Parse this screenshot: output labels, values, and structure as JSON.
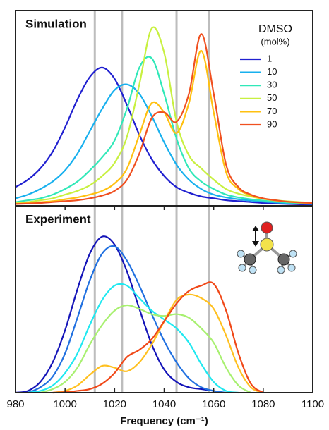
{
  "chart_data": [
    {
      "type": "line",
      "title": "Simulation",
      "legend_title": "DMSO",
      "legend_subtitle": "(mol%)",
      "legend": "upper right",
      "x": [
        980,
        985,
        990,
        995,
        1000,
        1005,
        1010,
        1015,
        1020,
        1025,
        1030,
        1035,
        1040,
        1045,
        1050,
        1055,
        1060,
        1065,
        1070,
        1075,
        1080,
        1085,
        1090,
        1095,
        1100
      ],
      "xlim": [
        980,
        1100
      ],
      "ylim": [
        0,
        1
      ],
      "reference_lines": [
        1012,
        1023,
        1045,
        1058
      ],
      "series": [
        {
          "name": "1",
          "color": "#2020d0",
          "values": [
            0.1,
            0.14,
            0.2,
            0.29,
            0.42,
            0.57,
            0.69,
            0.74,
            0.68,
            0.54,
            0.38,
            0.25,
            0.16,
            0.1,
            0.07,
            0.05,
            0.04,
            0.03,
            0.025,
            0.02,
            0.015,
            0.012,
            0.01,
            0.008,
            0.007
          ]
        },
        {
          "name": "10",
          "color": "#18b0ee",
          "values": [
            0.04,
            0.06,
            0.09,
            0.13,
            0.19,
            0.28,
            0.4,
            0.52,
            0.62,
            0.65,
            0.6,
            0.48,
            0.34,
            0.22,
            0.14,
            0.09,
            0.06,
            0.045,
            0.035,
            0.028,
            0.022,
            0.018,
            0.015,
            0.012,
            0.01
          ]
        },
        {
          "name": "30",
          "color": "#30e8b8",
          "values": [
            0.02,
            0.03,
            0.04,
            0.06,
            0.09,
            0.13,
            0.19,
            0.26,
            0.35,
            0.52,
            0.74,
            0.79,
            0.6,
            0.36,
            0.2,
            0.13,
            0.09,
            0.06,
            0.045,
            0.035,
            0.028,
            0.022,
            0.018,
            0.015,
            0.012
          ]
        },
        {
          "name": "50",
          "color": "#c8f040",
          "values": [
            0.015,
            0.02,
            0.03,
            0.04,
            0.06,
            0.08,
            0.11,
            0.16,
            0.23,
            0.37,
            0.65,
            0.95,
            0.82,
            0.45,
            0.27,
            0.2,
            0.14,
            0.09,
            0.065,
            0.05,
            0.038,
            0.03,
            0.024,
            0.02,
            0.016
          ]
        },
        {
          "name": "70",
          "color": "#ffc010",
          "values": [
            0.01,
            0.015,
            0.02,
            0.025,
            0.035,
            0.045,
            0.06,
            0.08,
            0.12,
            0.2,
            0.38,
            0.55,
            0.5,
            0.39,
            0.55,
            0.83,
            0.5,
            0.18,
            0.09,
            0.055,
            0.038,
            0.028,
            0.021,
            0.017,
            0.014
          ]
        },
        {
          "name": "90",
          "color": "#f05020",
          "values": [
            0.01,
            0.012,
            0.015,
            0.02,
            0.025,
            0.03,
            0.04,
            0.055,
            0.08,
            0.14,
            0.28,
            0.47,
            0.5,
            0.45,
            0.6,
            0.92,
            0.6,
            0.22,
            0.1,
            0.06,
            0.04,
            0.03,
            0.022,
            0.018,
            0.015
          ]
        }
      ]
    },
    {
      "type": "line",
      "title": "Experiment",
      "x_label": "Frequency (cm⁻¹)",
      "x": [
        980,
        985,
        990,
        995,
        1000,
        1005,
        1010,
        1015,
        1020,
        1025,
        1030,
        1035,
        1040,
        1045,
        1050,
        1055,
        1060,
        1065,
        1070,
        1075,
        1080,
        1085,
        1090,
        1095,
        1100
      ],
      "xlim": [
        980,
        1100
      ],
      "ylim": [
        0,
        1
      ],
      "xticks": [
        980,
        1000,
        1020,
        1040,
        1060,
        1080,
        1100
      ],
      "reference_lines": [
        1012,
        1023,
        1045,
        1058
      ],
      "series": [
        {
          "color": "#1414b8",
          "values": [
            0,
            0.01,
            0.06,
            0.17,
            0.35,
            0.58,
            0.78,
            0.875,
            0.83,
            0.68,
            0.47,
            0.27,
            0.13,
            0.06,
            0.03,
            0.02,
            0.01,
            null,
            null,
            null,
            null,
            null,
            null,
            null,
            null
          ]
        },
        {
          "color": "#2070e0",
          "values": [
            null,
            0,
            0.03,
            0.09,
            0.22,
            0.42,
            0.63,
            0.78,
            0.82,
            0.74,
            0.6,
            0.44,
            0.29,
            0.17,
            0.08,
            0.03,
            0.01,
            0,
            null,
            null,
            null,
            null,
            null,
            null,
            null
          ]
        },
        {
          "color": "#20e8f0",
          "values": [
            null,
            0,
            0.01,
            0.04,
            0.11,
            0.22,
            0.38,
            0.52,
            0.6,
            0.6,
            0.53,
            0.46,
            0.41,
            0.36,
            0.28,
            0.16,
            0.06,
            0.01,
            0,
            null,
            null,
            null,
            null,
            null,
            null
          ]
        },
        {
          "color": "#a8f070",
          "values": [
            null,
            null,
            0,
            0.02,
            0.06,
            0.14,
            0.27,
            0.38,
            0.46,
            0.49,
            0.47,
            0.44,
            0.43,
            0.44,
            0.42,
            0.36,
            0.28,
            0.14,
            0.04,
            0,
            null,
            null,
            null,
            null,
            null
          ]
        },
        {
          "color": "#ffc020",
          "values": [
            null,
            null,
            null,
            0,
            0.01,
            0.04,
            0.1,
            0.15,
            0.14,
            0.12,
            0.17,
            0.27,
            0.4,
            0.52,
            0.55,
            0.53,
            0.47,
            0.32,
            0.14,
            0.03,
            0,
            null,
            null,
            null,
            null
          ]
        },
        {
          "color": "#f04818",
          "values": [
            null,
            null,
            null,
            0,
            0.003,
            0.01,
            0.02,
            0.05,
            0.11,
            0.2,
            0.24,
            0.3,
            0.4,
            0.5,
            0.57,
            0.6,
            0.61,
            0.46,
            0.22,
            0.05,
            0,
            null,
            null,
            null,
            null
          ]
        }
      ]
    }
  ]
}
